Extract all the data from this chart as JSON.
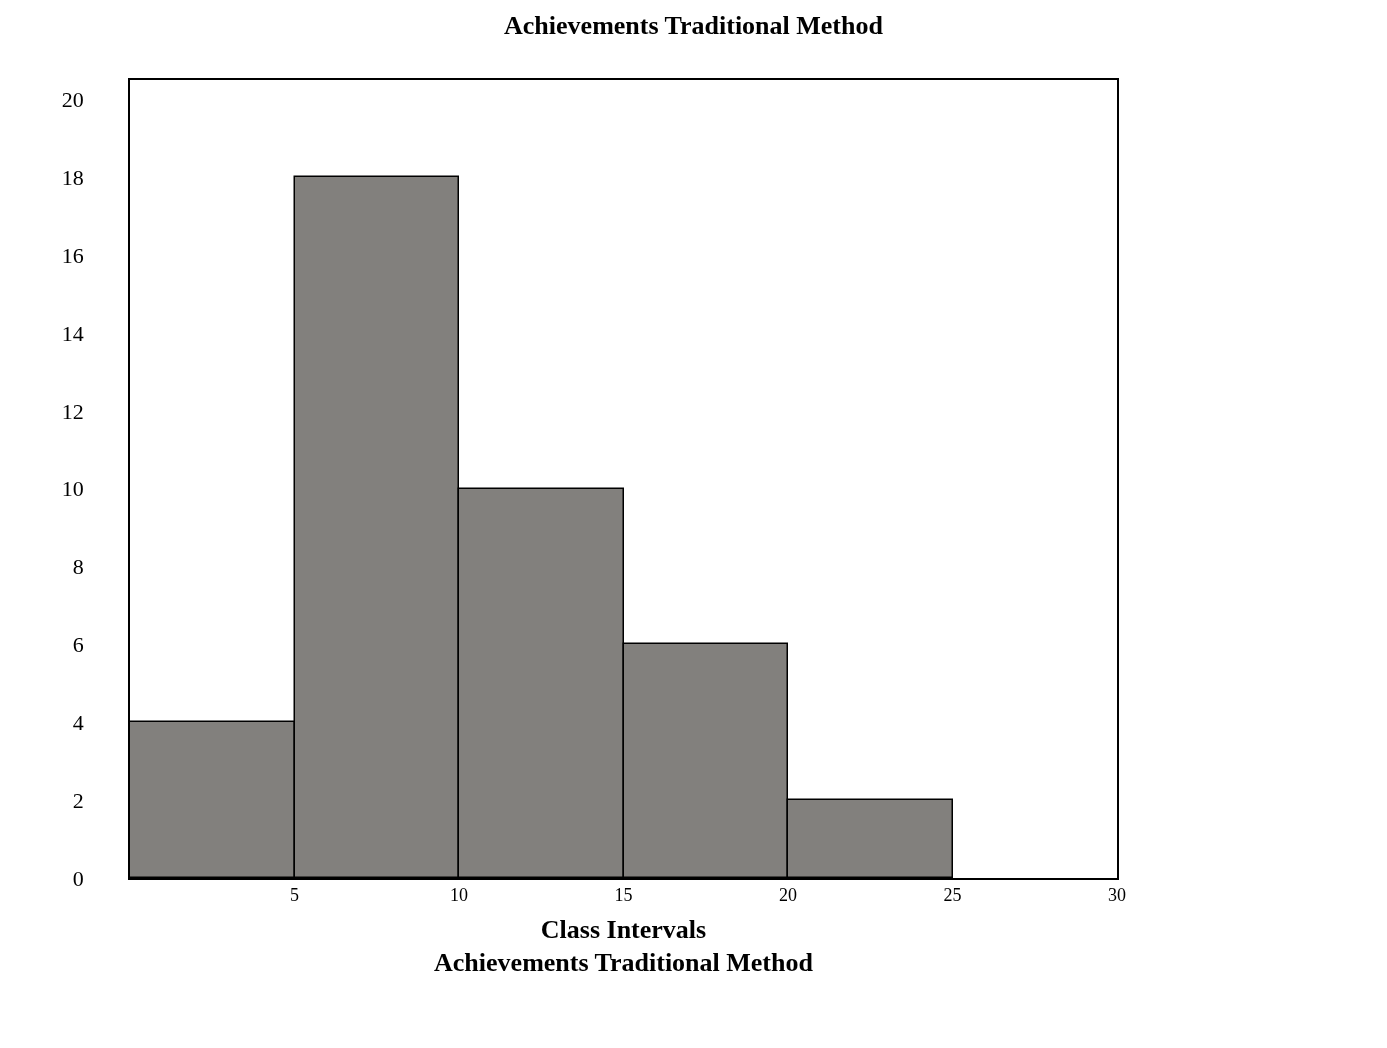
{
  "chart_data": {
    "type": "histogram",
    "title": "Achievements Traditional Method",
    "xlabel": "Class Intervals\nAchievements Traditional Method",
    "bins": [
      0,
      5,
      10,
      15,
      20,
      25
    ],
    "values": [
      4,
      18,
      10,
      6,
      2
    ],
    "color": "#82807d",
    "xlim": [
      0,
      30
    ],
    "xticks": [
      5,
      10,
      15,
      20,
      25,
      30
    ],
    "ylim": [
      0,
      20.5
    ],
    "yticks": [
      0,
      2,
      4,
      6,
      8,
      10,
      12,
      14,
      16,
      18,
      20
    ]
  }
}
